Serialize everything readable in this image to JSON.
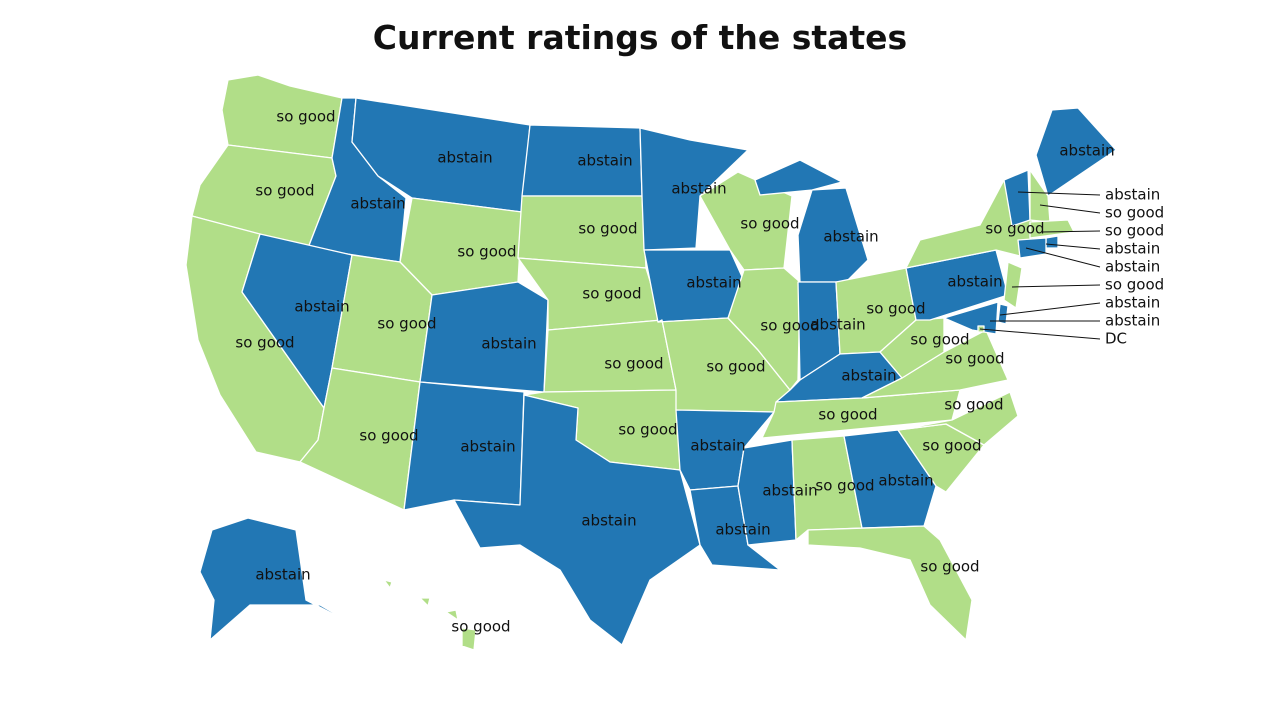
{
  "title": "Current ratings of the states",
  "colors": {
    "so good": "#b1de88",
    "abstain": "#2277b4",
    "stroke": "#ffffff",
    "label": "#111111"
  },
  "categories": [
    "so good",
    "abstain"
  ],
  "states": [
    {
      "id": "WA",
      "rating": "so good"
    },
    {
      "id": "OR",
      "rating": "so good"
    },
    {
      "id": "CA",
      "rating": "so good"
    },
    {
      "id": "ID",
      "rating": "abstain"
    },
    {
      "id": "NV",
      "rating": "abstain"
    },
    {
      "id": "MT",
      "rating": "abstain"
    },
    {
      "id": "WY",
      "rating": "so good"
    },
    {
      "id": "UT",
      "rating": "so good"
    },
    {
      "id": "AZ",
      "rating": "so good"
    },
    {
      "id": "CO",
      "rating": "abstain"
    },
    {
      "id": "NM",
      "rating": "abstain"
    },
    {
      "id": "ND",
      "rating": "abstain"
    },
    {
      "id": "SD",
      "rating": "so good"
    },
    {
      "id": "NE",
      "rating": "so good"
    },
    {
      "id": "KS",
      "rating": "so good"
    },
    {
      "id": "OK",
      "rating": "so good"
    },
    {
      "id": "TX",
      "rating": "abstain"
    },
    {
      "id": "MN",
      "rating": "abstain"
    },
    {
      "id": "IA",
      "rating": "abstain"
    },
    {
      "id": "MO",
      "rating": "so good"
    },
    {
      "id": "AR",
      "rating": "abstain"
    },
    {
      "id": "LA",
      "rating": "abstain"
    },
    {
      "id": "WI",
      "rating": "so good"
    },
    {
      "id": "IL",
      "rating": "so good"
    },
    {
      "id": "MI",
      "rating": "abstain"
    },
    {
      "id": "IN",
      "rating": "abstain"
    },
    {
      "id": "OH",
      "rating": "so good"
    },
    {
      "id": "KY",
      "rating": "abstain"
    },
    {
      "id": "TN",
      "rating": "so good"
    },
    {
      "id": "MS",
      "rating": "abstain"
    },
    {
      "id": "AL",
      "rating": "so good"
    },
    {
      "id": "GA",
      "rating": "abstain"
    },
    {
      "id": "FL",
      "rating": "so good"
    },
    {
      "id": "SC",
      "rating": "so good"
    },
    {
      "id": "NC",
      "rating": "so good"
    },
    {
      "id": "VA",
      "rating": "so good"
    },
    {
      "id": "WV",
      "rating": "so good"
    },
    {
      "id": "PA",
      "rating": "abstain"
    },
    {
      "id": "NY",
      "rating": "so good"
    },
    {
      "id": "ME",
      "rating": "abstain"
    },
    {
      "id": "VT",
      "rating": "abstain"
    },
    {
      "id": "NH",
      "rating": "so good"
    },
    {
      "id": "MA",
      "rating": "so good"
    },
    {
      "id": "RI",
      "rating": "abstain"
    },
    {
      "id": "CT",
      "rating": "abstain"
    },
    {
      "id": "NJ",
      "rating": "so good"
    },
    {
      "id": "DE",
      "rating": "abstain"
    },
    {
      "id": "MD",
      "rating": "abstain"
    },
    {
      "id": "DC",
      "rating": "so good"
    },
    {
      "id": "AK",
      "rating": "abstain"
    },
    {
      "id": "HI",
      "rating": "so good"
    }
  ],
  "callout_labels": [
    "abstain",
    "so good",
    "so good",
    "abstain",
    "abstain",
    "so good",
    "abstain",
    "abstain",
    "DC"
  ]
}
